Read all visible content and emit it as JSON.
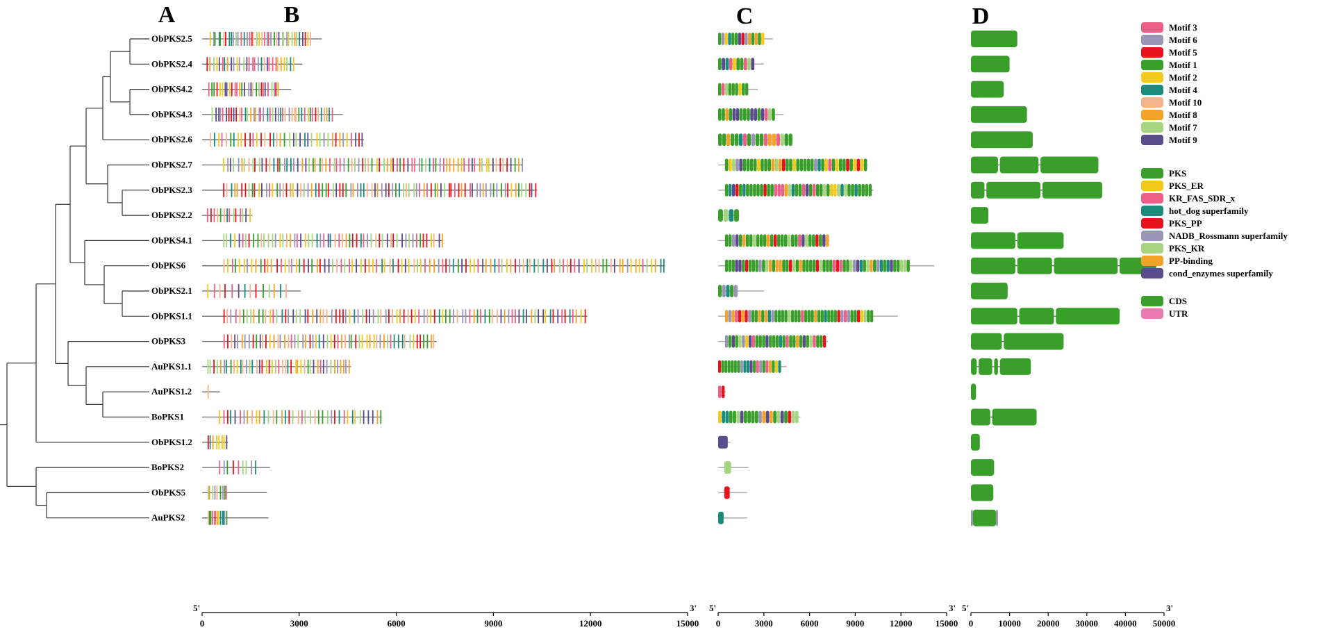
{
  "panel_labels": [
    "A",
    "B",
    "C",
    "D"
  ],
  "genes": [
    "ObPKS2.5",
    "ObPKS2.4",
    "ObPKS4.2",
    "ObPKS4.3",
    "ObPKS2.6",
    "ObPKS2.7",
    "ObPKS2.3",
    "ObPKS2.2",
    "ObPKS4.1",
    "ObPKS6",
    "ObPKS2.1",
    "ObPKS1.1",
    "ObPKS3",
    "AuPKS1.1",
    "AuPKS1.2",
    "BoPKS1",
    "ObPKS1.2",
    "BoPKS2",
    "ObPKS5",
    "AuPKS2"
  ],
  "tree": {
    "edges": [
      [
        "root",
        "n1"
      ],
      [
        "root",
        "n18"
      ],
      [
        "n18",
        "BoPKS2"
      ],
      [
        "n18",
        "n19"
      ],
      [
        "n19",
        "ObPKS5"
      ],
      [
        "n19",
        "AuPKS2"
      ],
      [
        "n1",
        "n2"
      ],
      [
        "n1",
        "ObPKS1.2"
      ],
      [
        "n2",
        "n3"
      ],
      [
        "n2",
        "n13"
      ],
      [
        "n13",
        "ObPKS3"
      ],
      [
        "n13",
        "n14"
      ],
      [
        "n14",
        "AuPKS1.1"
      ],
      [
        "n14",
        "n15"
      ],
      [
        "n15",
        "AuPKS1.2"
      ],
      [
        "n15",
        "BoPKS1"
      ],
      [
        "n3",
        "n4"
      ],
      [
        "n3",
        "n9"
      ],
      [
        "n9",
        "ObPKS4.1"
      ],
      [
        "n9",
        "n10"
      ],
      [
        "n10",
        "ObPKS6"
      ],
      [
        "n10",
        "n11"
      ],
      [
        "n11",
        "ObPKS2.1"
      ],
      [
        "n11",
        "ObPKS1.1"
      ],
      [
        "n4",
        "n5"
      ],
      [
        "n4",
        "n6"
      ],
      [
        "n6",
        "ObPKS2.7"
      ],
      [
        "n6",
        "n7"
      ],
      [
        "n7",
        "ObPKS2.3"
      ],
      [
        "n7",
        "ObPKS2.2"
      ],
      [
        "n5",
        "n8"
      ],
      [
        "n5",
        "ObPKS2.6"
      ],
      [
        "n8",
        "n12"
      ],
      [
        "n8",
        "n16"
      ],
      [
        "n12",
        "ObPKS2.5"
      ],
      [
        "n12",
        "ObPKS2.4"
      ],
      [
        "n16",
        "ObPKS4.2"
      ],
      [
        "n16",
        "ObPKS4.3"
      ]
    ]
  },
  "motif_colors": {
    "Motif 3": "#ec5f86",
    "Motif 6": "#9b95b5",
    "Motif 5": "#e8141d",
    "Motif 1": "#3a9f2a",
    "Motif 2": "#f3c91b",
    "Motif 4": "#1b8c7c",
    "Motif 10": "#f6b48c",
    "Motif 8": "#f4a32a",
    "Motif 7": "#a6d481",
    "Motif 9": "#5a4b8b"
  },
  "domain_colors": {
    "PKS": "#3a9f2a",
    "PKS_ER": "#f3c91b",
    "KR_FAS_SDR_x": "#ec5f86",
    "hot_dog superfamily": "#1b8c7c",
    "PKS_PP": "#e8141d",
    "NADB_Rossmann superfamily": "#9b95b5",
    "PKS_KR": "#a6d481",
    "PP-binding": "#f4a32a",
    "cond_enzymes superfamily": "#5a4b8b"
  },
  "structure_colors": {
    "CDS": "#3a9f2a",
    "UTR": "#ec7ab0"
  },
  "legend": {
    "motifs": [
      "Motif 3",
      "Motif 6",
      "Motif 5",
      "Motif 1",
      "Motif 2",
      "Motif 4",
      "Motif 10",
      "Motif 8",
      "Motif 7",
      "Motif 9"
    ],
    "domains": [
      "PKS",
      "PKS_ER",
      "KR_FAS_SDR_x",
      "hot_dog superfamily",
      "PKS_PP",
      "NADB_Rossmann superfamily",
      "PKS_KR",
      "PP-binding",
      "cond_enzymes superfamily"
    ],
    "structure": [
      "CDS",
      "UTR"
    ]
  },
  "panel_B": {
    "axis_ticks": [
      0,
      3000,
      6000,
      9000,
      12000,
      15000
    ],
    "tick_labels": [
      "0",
      "3000",
      "6000",
      "9000",
      "12000",
      "15000"
    ],
    "end_5": "5'",
    "end_3": "3'",
    "lengths": [
      3700,
      3100,
      2750,
      4350,
      5000,
      9900,
      10350,
      1550,
      7450,
      14300,
      3050,
      11900,
      7250,
      4600,
      550,
      5550,
      800,
      2100,
      2000,
      2050
    ],
    "motif_spans": [
      [
        250,
        3300
      ],
      [
        150,
        2800
      ],
      [
        200,
        2350
      ],
      [
        300,
        4000
      ],
      [
        250,
        4950
      ],
      [
        650,
        9850
      ],
      [
        650,
        10300
      ],
      [
        150,
        1450
      ],
      [
        650,
        7400
      ],
      [
        650,
        14250
      ],
      [
        150,
        2600
      ],
      [
        650,
        11800
      ],
      [
        650,
        7150
      ],
      [
        150,
        4550
      ],
      [
        150,
        550
      ],
      [
        500,
        5500
      ],
      [
        150,
        750
      ],
      [
        500,
        1650
      ],
      [
        150,
        750
      ],
      [
        150,
        750
      ]
    ],
    "motif_counts": [
      40,
      30,
      28,
      45,
      40,
      85,
      90,
      14,
      60,
      110,
      14,
      95,
      60,
      45,
      1,
      40,
      8,
      9,
      9,
      12
    ]
  },
  "panel_C": {
    "axis_ticks": [
      0,
      3000,
      6000,
      9000,
      12000,
      15000
    ],
    "tick_labels": [
      "0",
      "3000",
      "6000",
      "9000",
      "12000",
      "15000"
    ],
    "end_5": "5'",
    "end_3": "3'",
    "lengths": [
      3600,
      3000,
      2600,
      4300,
      4900,
      9800,
      10200,
      1400,
      7300,
      14200,
      3000,
      11800,
      7200,
      4500,
      500,
      5400,
      800,
      2000,
      1900,
      1900
    ],
    "domain_spans": [
      [
        0,
        3050
      ],
      [
        0,
        2400
      ],
      [
        0,
        2000
      ],
      [
        0,
        3750
      ],
      [
        0,
        4900
      ],
      [
        450,
        9800
      ],
      [
        450,
        10100
      ],
      [
        0,
        1400
      ],
      [
        450,
        7300
      ],
      [
        450,
        12600
      ],
      [
        0,
        1300
      ],
      [
        450,
        10200
      ],
      [
        450,
        7100
      ],
      [
        0,
        4150
      ],
      [
        0,
        450
      ],
      [
        0,
        5300
      ],
      [
        0,
        700
      ],
      [
        400,
        900
      ],
      [
        400,
        800
      ],
      [
        0,
        400
      ]
    ],
    "domain_counts": [
      14,
      10,
      9,
      16,
      18,
      40,
      42,
      4,
      30,
      55,
      5,
      45,
      30,
      20,
      2,
      22,
      1,
      1,
      1,
      1
    ]
  },
  "panel_D": {
    "axis_ticks": [
      0,
      10000,
      20000,
      30000,
      40000,
      50000
    ],
    "tick_labels": [
      "0",
      "10000",
      "20000",
      "30000",
      "40000",
      "50000"
    ],
    "end_5": "5'",
    "end_3": "3'",
    "exons": [
      [
        [
          0,
          12000
        ]
      ],
      [
        [
          0,
          10000
        ]
      ],
      [
        [
          0,
          8500
        ]
      ],
      [
        [
          0,
          14500
        ]
      ],
      [
        [
          0,
          16000
        ]
      ],
      [
        [
          0,
          7000
        ],
        [
          7500,
          17500
        ],
        [
          18000,
          33000
        ]
      ],
      [
        [
          0,
          3500
        ],
        [
          4000,
          18000
        ],
        [
          18500,
          34000
        ]
      ],
      [
        [
          0,
          4500
        ]
      ],
      [
        [
          0,
          11500
        ],
        [
          12000,
          24000
        ]
      ],
      [
        [
          0,
          11500
        ],
        [
          12000,
          21000
        ],
        [
          21500,
          38000
        ],
        [
          38500,
          48000
        ]
      ],
      [
        [
          0,
          9500
        ]
      ],
      [
        [
          0,
          12000
        ],
        [
          12500,
          21500
        ],
        [
          22000,
          38500
        ]
      ],
      [
        [
          0,
          8000
        ],
        [
          8500,
          24000
        ]
      ],
      [
        [
          0,
          1500
        ],
        [
          2000,
          5500
        ],
        [
          6000,
          7000
        ],
        [
          7500,
          15500
        ]
      ],
      [
        [
          0,
          1300
        ]
      ],
      [
        [
          0,
          5000
        ],
        [
          5500,
          17000
        ]
      ],
      [
        [
          0,
          2300
        ]
      ],
      [
        [
          0,
          6000
        ]
      ],
      [
        [
          0,
          5800
        ]
      ],
      [
        [
          500,
          6500
        ]
      ]
    ],
    "utr": [
      [],
      [],
      [],
      [],
      [],
      [],
      [],
      [],
      [],
      [],
      [],
      [],
      [],
      [],
      [],
      [],
      [],
      [],
      [],
      [
        [
          0,
          500
        ],
        [
          6500,
          7000
        ]
      ]
    ]
  }
}
